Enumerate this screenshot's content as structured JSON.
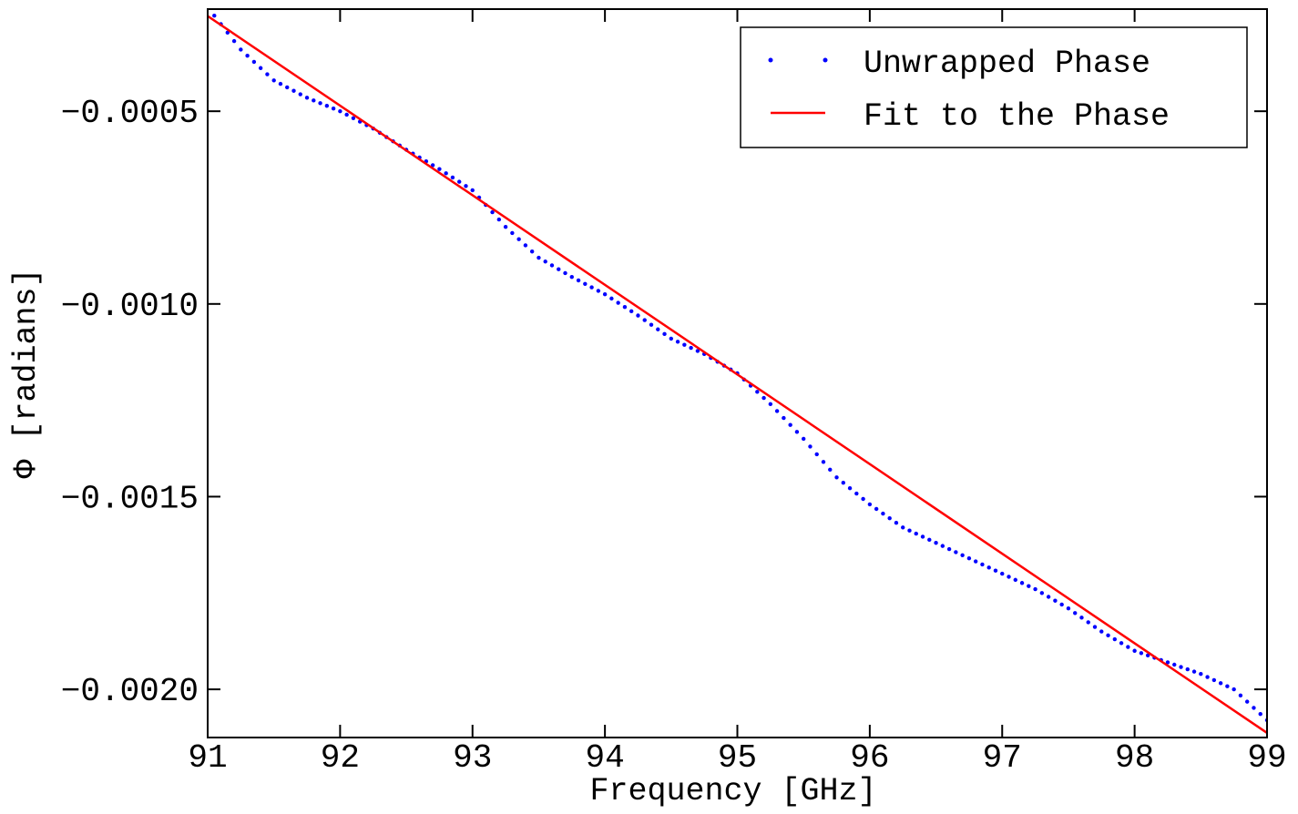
{
  "chart_data": {
    "type": "line",
    "title": "",
    "xlabel": "Frequency [GHz]",
    "ylabel": "Φ [radians]",
    "xlim": [
      91,
      99
    ],
    "ylim": [
      -0.002125,
      -0.000235
    ],
    "x_ticks": [
      91,
      92,
      93,
      94,
      95,
      96,
      97,
      98,
      99
    ],
    "x_tick_labels": [
      "91",
      "92",
      "93",
      "94",
      "95",
      "96",
      "97",
      "98",
      "99"
    ],
    "y_ticks": [
      -0.0005,
      -0.001,
      -0.0015,
      -0.002
    ],
    "y_tick_labels": [
      "−0.0005",
      "−0.0010",
      "−0.0015",
      "−0.0020"
    ],
    "grid": false,
    "legend_position": "top-right",
    "series": [
      {
        "name": "Unwrapped Phase",
        "style": "dotted",
        "color": "#0000ff",
        "x": [
          91.0,
          91.25,
          91.5,
          91.75,
          92.0,
          92.25,
          92.5,
          92.75,
          93.0,
          93.25,
          93.5,
          93.75,
          94.0,
          94.25,
          94.5,
          94.75,
          95.0,
          95.25,
          95.5,
          95.75,
          96.0,
          96.25,
          96.5,
          96.75,
          97.0,
          97.25,
          97.5,
          97.75,
          98.0,
          98.25,
          98.5,
          98.75,
          99.0
        ],
        "y": [
          -0.00023,
          -0.00034,
          -0.00042,
          -0.000465,
          -0.0005,
          -0.000545,
          -0.0006,
          -0.00065,
          -0.000705,
          -0.0008,
          -0.00088,
          -0.00093,
          -0.000975,
          -0.00103,
          -0.00109,
          -0.00113,
          -0.00118,
          -0.00126,
          -0.00135,
          -0.00145,
          -0.00152,
          -0.00158,
          -0.00162,
          -0.00166,
          -0.0017,
          -0.00174,
          -0.00179,
          -0.00185,
          -0.0019,
          -0.00193,
          -0.00196,
          -0.002,
          -0.00208
        ]
      },
      {
        "name": "Fit to the Phase",
        "style": "solid",
        "color": "#ff0000",
        "x": [
          91.0,
          99.0
        ],
        "y": [
          -0.000253,
          -0.002113
        ]
      }
    ]
  }
}
